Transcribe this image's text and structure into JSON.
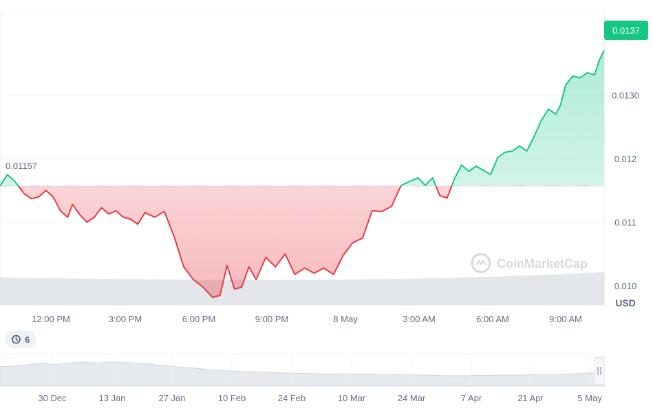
{
  "chart_data": {
    "type": "area",
    "currency": "USD",
    "baseline": 0.01157,
    "baseline_label": "0.01157",
    "current_label": "0.0137",
    "ylim": [
      0.0097,
      0.0143
    ],
    "yticks": [
      {
        "value": 0.013,
        "label": "0.0130"
      },
      {
        "value": 0.012,
        "label": "0.012"
      },
      {
        "value": 0.011,
        "label": "0.011"
      },
      {
        "value": 0.01,
        "label": "0.010"
      }
    ],
    "xticks": [
      "12:00 PM",
      "3:00 PM",
      "6:00 PM",
      "9:00 PM",
      "8 May",
      "3:00 AM",
      "6:00 AM",
      "9:00 AM"
    ],
    "series": [
      {
        "points": [
          [
            0.0,
            0.01157
          ],
          [
            0.3,
            0.01175
          ],
          [
            0.6,
            0.01165
          ],
          [
            1.0,
            0.01145
          ],
          [
            1.3,
            0.01137
          ],
          [
            1.6,
            0.0114
          ],
          [
            1.9,
            0.0115
          ],
          [
            2.2,
            0.0114
          ],
          [
            2.5,
            0.01118
          ],
          [
            2.8,
            0.01108
          ],
          [
            3.0,
            0.01128
          ],
          [
            3.3,
            0.01112
          ],
          [
            3.6,
            0.011
          ],
          [
            3.9,
            0.01108
          ],
          [
            4.2,
            0.01123
          ],
          [
            4.5,
            0.01113
          ],
          [
            4.8,
            0.01118
          ],
          [
            5.1,
            0.01108
          ],
          [
            5.4,
            0.01105
          ],
          [
            5.7,
            0.01097
          ],
          [
            6.0,
            0.01115
          ],
          [
            6.4,
            0.01108
          ],
          [
            6.8,
            0.01117
          ],
          [
            7.2,
            0.01078
          ],
          [
            7.6,
            0.0103
          ],
          [
            8.0,
            0.0101
          ],
          [
            8.4,
            0.00998
          ],
          [
            8.8,
            0.00982
          ],
          [
            9.1,
            0.00985
          ],
          [
            9.4,
            0.01032
          ],
          [
            9.7,
            0.00995
          ],
          [
            10.0,
            0.00998
          ],
          [
            10.3,
            0.0103
          ],
          [
            10.6,
            0.0101
          ],
          [
            11.0,
            0.01045
          ],
          [
            11.4,
            0.0103
          ],
          [
            11.8,
            0.0105
          ],
          [
            12.2,
            0.01018
          ],
          [
            12.6,
            0.01028
          ],
          [
            13.0,
            0.0102
          ],
          [
            13.4,
            0.01028
          ],
          [
            13.8,
            0.01018
          ],
          [
            14.2,
            0.01048
          ],
          [
            14.6,
            0.01068
          ],
          [
            15.0,
            0.01075
          ],
          [
            15.4,
            0.01118
          ],
          [
            15.8,
            0.01117
          ],
          [
            16.2,
            0.01125
          ],
          [
            16.6,
            0.01158
          ],
          [
            17.0,
            0.01165
          ],
          [
            17.3,
            0.0117
          ],
          [
            17.6,
            0.01158
          ],
          [
            17.9,
            0.0117
          ],
          [
            18.2,
            0.01142
          ],
          [
            18.5,
            0.01138
          ],
          [
            18.8,
            0.01168
          ],
          [
            19.1,
            0.0119
          ],
          [
            19.4,
            0.0118
          ],
          [
            19.7,
            0.01188
          ],
          [
            20.0,
            0.01182
          ],
          [
            20.3,
            0.01175
          ],
          [
            20.6,
            0.01202
          ],
          [
            20.9,
            0.0121
          ],
          [
            21.2,
            0.01212
          ],
          [
            21.5,
            0.0122
          ],
          [
            21.8,
            0.01212
          ],
          [
            22.1,
            0.01235
          ],
          [
            22.4,
            0.0126
          ],
          [
            22.7,
            0.01278
          ],
          [
            23.0,
            0.0127
          ],
          [
            23.2,
            0.01285
          ],
          [
            23.4,
            0.01315
          ],
          [
            23.7,
            0.0133
          ],
          [
            24.0,
            0.01327
          ],
          [
            24.3,
            0.01335
          ],
          [
            24.6,
            0.01332
          ],
          [
            24.8,
            0.01355
          ],
          [
            25.0,
            0.0137
          ]
        ]
      }
    ]
  },
  "badge": {
    "count": "6",
    "icon": "history-icon"
  },
  "watermark": "CoinMarketCap",
  "navigator": {
    "xticks": [
      "30 Dec",
      "13 Jan",
      "27 Jan",
      "10 Feb",
      "24 Feb",
      "10 Mar",
      "24 Mar",
      "7 Apr",
      "21 Apr",
      "5 May"
    ],
    "values": [
      0.6,
      0.62,
      0.66,
      0.7,
      0.66,
      0.72,
      0.74,
      0.71,
      0.75,
      0.73,
      0.7,
      0.66,
      0.62,
      0.58,
      0.55,
      0.5,
      0.47,
      0.45,
      0.44,
      0.43,
      0.41,
      0.4,
      0.39,
      0.38,
      0.38,
      0.37,
      0.37,
      0.36,
      0.35,
      0.35,
      0.34,
      0.33,
      0.32,
      0.32,
      0.33,
      0.33,
      0.34,
      0.34,
      0.35,
      0.36,
      0.36,
      0.38,
      0.41,
      0.45
    ]
  },
  "colors": {
    "up": "#16c784",
    "down": "#ea3943",
    "grid": "#eff2f5",
    "text": "#616e85",
    "volume": "#e3e6eb"
  }
}
